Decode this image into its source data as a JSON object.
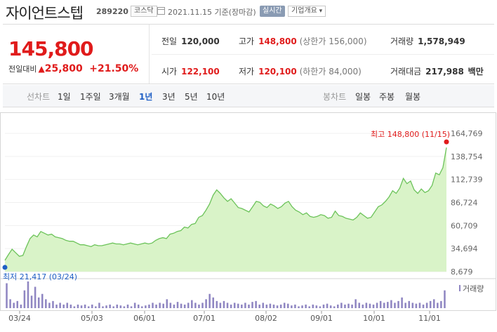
{
  "header": {
    "stock_name": "자이언트스텝",
    "stock_code": "289220",
    "market": "코스닥",
    "date_text": "2021.11.15 기준(장마감)",
    "realtime_label": "실시간",
    "company_overview_label": "기업개요"
  },
  "summary": {
    "price": "145,800",
    "change_label": "전일대비",
    "change_amount": "25,800",
    "change_rate": "+21.50%",
    "prev_close_label": "전일",
    "prev_close": "120,000",
    "high_label": "고가",
    "high": "148,800",
    "upper_limit": "(상한가 156,000)",
    "volume_label": "거래량",
    "volume": "1,578,949",
    "open_label": "시가",
    "open": "122,100",
    "low_label": "저가",
    "low": "120,100",
    "lower_limit": "(하한가 84,000)",
    "amount_label": "거래대금",
    "amount": "217,988",
    "amount_unit": "백만"
  },
  "tabs": {
    "line_title": "선차트",
    "periods": [
      "1일",
      "1주일",
      "3개월",
      "1년",
      "3년",
      "5년",
      "10년"
    ],
    "selected_period": "1년",
    "candle_title": "봉차트",
    "candles": [
      "일봉",
      "주봉",
      "월봉"
    ]
  },
  "colors": {
    "red": "#e01b1b",
    "blue": "#1f5fc5",
    "line": "#6cc35a",
    "fill": "#d9f3c8",
    "volume": "#8f86c2"
  },
  "chart_data": {
    "type": "area",
    "x_ticks": [
      "03/24",
      "05/03",
      "06/01",
      "07/01",
      "08/02",
      "09/01",
      "10/01",
      "11/01"
    ],
    "y_ticks": [
      "164,769",
      "138,754",
      "112,739",
      "86,724",
      "60,709",
      "34,694",
      "8,679"
    ],
    "ylim": [
      8679,
      164769
    ],
    "max_label": "최고 148,800 (11/15)",
    "min_label": "최저 21,417 (03/24)",
    "volume_legend": "거래량",
    "values": [
      21417,
      28000,
      34000,
      30000,
      26000,
      27000,
      37000,
      46000,
      50000,
      48000,
      54000,
      52000,
      50000,
      51000,
      48000,
      47000,
      46000,
      44000,
      43000,
      43000,
      41000,
      39000,
      39000,
      38000,
      37000,
      39000,
      38000,
      38000,
      39000,
      40000,
      41000,
      40000,
      40000,
      39000,
      40000,
      41000,
      40000,
      39000,
      40000,
      41000,
      40000,
      41000,
      44000,
      46000,
      47000,
      46000,
      51000,
      52000,
      54000,
      55000,
      59000,
      58000,
      62000,
      63000,
      70000,
      72000,
      78000,
      85000,
      95000,
      101000,
      97000,
      92000,
      88000,
      91000,
      86000,
      81000,
      80000,
      78000,
      76000,
      82000,
      88000,
      87000,
      83000,
      81000,
      85000,
      83000,
      80000,
      82000,
      86000,
      88000,
      82000,
      78000,
      76000,
      73000,
      75000,
      71000,
      70000,
      71000,
      73000,
      72000,
      69000,
      70000,
      77000,
      72000,
      71000,
      69000,
      68000,
      67000,
      70000,
      75000,
      72000,
      69000,
      70000,
      76000,
      82000,
      84000,
      88000,
      93000,
      100000,
      97000,
      103000,
      114000,
      108000,
      111000,
      101000,
      97000,
      102000,
      98000,
      100000,
      106000,
      120000,
      118000,
      126000,
      148800
    ],
    "volume": [
      1.4,
      0.5,
      0.3,
      0.4,
      0.2,
      1.0,
      1.5,
      0.7,
      1.2,
      0.6,
      0.8,
      0.5,
      0.3,
      0.4,
      0.2,
      0.3,
      0.2,
      0.3,
      0.2,
      0.1,
      0.2,
      0.15,
      0.2,
      0.1,
      0.2,
      0.1,
      0.3,
      0.1,
      0.15,
      0.2,
      0.1,
      0.2,
      0.15,
      0.1,
      0.2,
      0.1,
      0.3,
      0.2,
      0.1,
      0.15,
      0.2,
      0.3,
      0.2,
      0.3,
      0.25,
      0.5,
      0.3,
      0.2,
      0.35,
      0.25,
      0.2,
      0.3,
      0.45,
      0.3,
      0.2,
      0.3,
      0.5,
      0.8,
      0.6,
      0.4,
      0.3,
      0.4,
      0.3,
      0.2,
      0.3,
      0.25,
      0.2,
      0.3,
      0.2,
      0.35,
      0.4,
      0.2,
      0.3,
      0.2,
      0.25,
      0.2,
      0.15,
      0.2,
      0.3,
      0.25,
      0.15,
      0.2,
      0.1,
      0.15,
      0.2,
      0.1,
      0.2,
      0.15,
      0.1,
      0.2,
      0.25,
      0.15,
      0.1,
      0.2,
      0.3,
      0.2,
      0.25,
      0.2,
      0.5,
      0.3,
      0.2,
      0.3,
      0.25,
      0.2,
      0.3,
      0.4,
      0.3,
      0.35,
      0.45,
      0.3,
      0.4,
      0.6,
      0.3,
      0.4,
      0.3,
      0.25,
      0.3,
      0.2,
      0.3,
      0.4,
      0.5,
      0.3,
      0.4,
      1.0
    ]
  }
}
